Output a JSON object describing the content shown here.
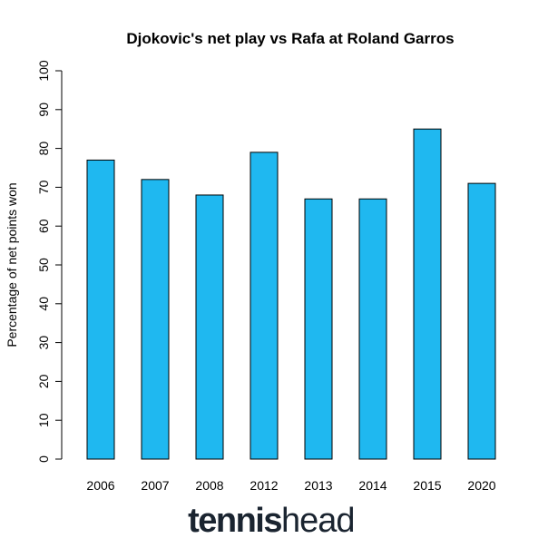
{
  "chart_data": {
    "type": "bar",
    "title": "Djokovic's net play vs Rafa at Roland Garros",
    "y_label": "Percentage of net points won",
    "categories": [
      "2006",
      "2007",
      "2008",
      "2012",
      "2013",
      "2014",
      "2015",
      "2020"
    ],
    "values": [
      77,
      72,
      68,
      79,
      67,
      67,
      85,
      71
    ],
    "color": "#1fb8f0",
    "ylim": [
      0,
      100
    ],
    "yticks": [
      0,
      10,
      20,
      30,
      40,
      50,
      60,
      70,
      80,
      90,
      100
    ],
    "logo": [
      "tennis",
      "head"
    ]
  }
}
